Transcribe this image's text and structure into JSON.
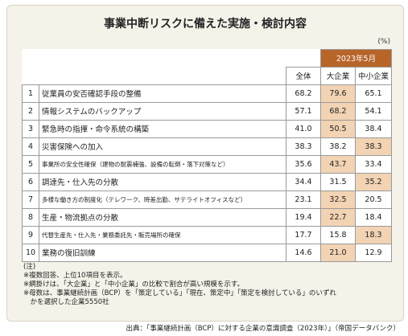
{
  "title": "事業中断リスクに備えた実施・検討内容",
  "unit": "(%)",
  "period": "2023年5月",
  "columns": [
    "全体",
    "大企業",
    "中小企業"
  ],
  "chart_data": {
    "type": "table",
    "title": "事業中断リスクに備えた実施・検討内容",
    "period": "2023年5月",
    "columns": [
      "全体",
      "大企業",
      "中小企業"
    ],
    "rows": [
      {
        "rank": "1",
        "item": "従業員の安否確認手段の整備",
        "values": [
          "68.2",
          "79.6",
          "65.1"
        ],
        "highlight": [
          false,
          true,
          false
        ]
      },
      {
        "rank": "2",
        "item": "情報システムのバックアップ",
        "values": [
          "57.1",
          "68.2",
          "54.1"
        ],
        "highlight": [
          false,
          true,
          false
        ]
      },
      {
        "rank": "3",
        "item": "緊急時の指揮・命令系統の構築",
        "values": [
          "41.0",
          "50.5",
          "38.4"
        ],
        "highlight": [
          false,
          true,
          false
        ]
      },
      {
        "rank": "4",
        "item": "災害保険への加入",
        "values": [
          "38.3",
          "38.2",
          "38.3"
        ],
        "highlight": [
          false,
          false,
          true
        ]
      },
      {
        "rank": "5",
        "item": "事業所の安全性確保（建物の耐震補強、設備の転倒・落下対策など）",
        "values": [
          "35.6",
          "43.7",
          "33.4"
        ],
        "highlight": [
          false,
          true,
          false
        ]
      },
      {
        "rank": "6",
        "item": "調達先・仕入先の分散",
        "values": [
          "34.4",
          "31.5",
          "35.2"
        ],
        "highlight": [
          false,
          false,
          true
        ]
      },
      {
        "rank": "7",
        "item": "多様な働き方の制度化（テレワーク、時差出勤、サテライトオフィスなど）",
        "values": [
          "23.1",
          "32.5",
          "20.5"
        ],
        "highlight": [
          false,
          true,
          false
        ]
      },
      {
        "rank": "8",
        "item": "生産・物流拠点の分散",
        "values": [
          "19.4",
          "22.7",
          "18.4"
        ],
        "highlight": [
          false,
          true,
          false
        ]
      },
      {
        "rank": "9",
        "item": "代替生産先・仕入先・業務委託先・販売場所の確保",
        "values": [
          "17.7",
          "15.8",
          "18.3"
        ],
        "highlight": [
          false,
          false,
          true
        ]
      },
      {
        "rank": "10",
        "item": "業務の復旧訓練",
        "values": [
          "14.6",
          "21.0",
          "12.9"
        ],
        "highlight": [
          false,
          true,
          false
        ]
      }
    ]
  },
  "notes": [
    "(注)",
    "※複数回答、上位10項目を表示。",
    "※網掛けは、「大企業」と「中小企業」の比較で割合が高い規模を示す。",
    "※母数は、事業継続計画（BCP）を「策定している」「現在、策定中」「策定を検討している」のいずれ",
    "　かを選択した企業5550社"
  ],
  "source": "出典：「事業継続計画（BCP）に対する企業の意識調査（2023年）」（帝国データバンク）"
}
